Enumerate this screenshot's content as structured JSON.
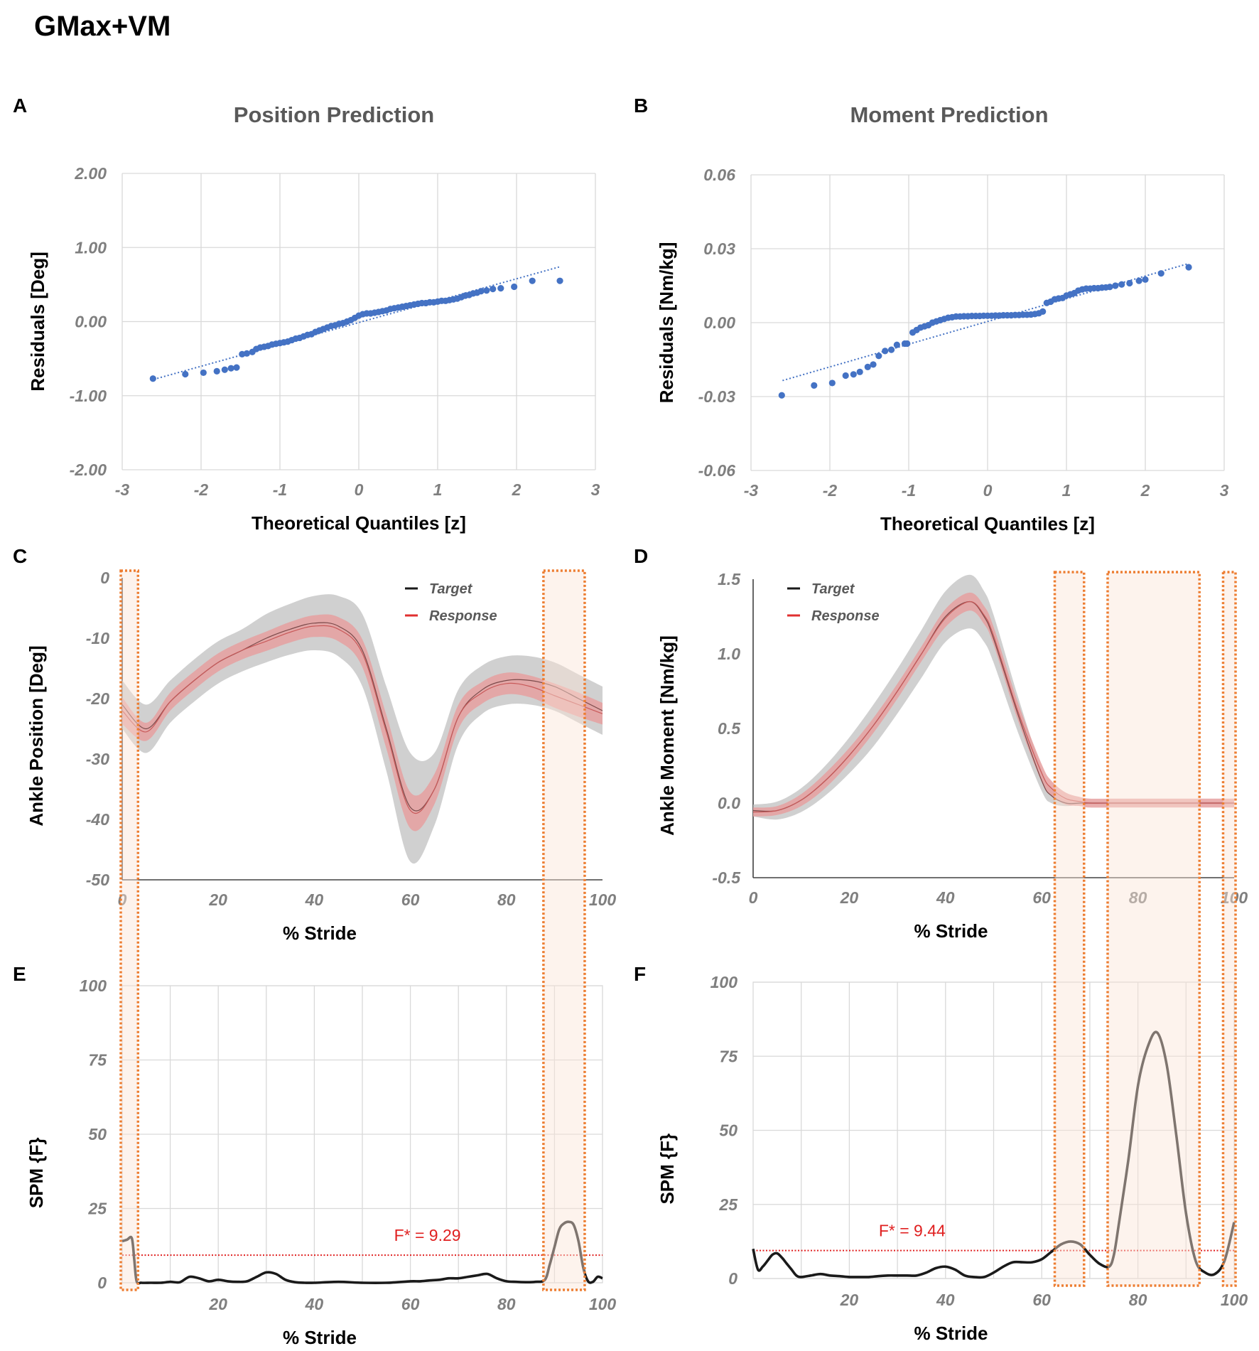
{
  "figure_title": "GMax+VM",
  "panels": {
    "A": "A",
    "B": "B",
    "C": "C",
    "D": "D",
    "E": "E",
    "F": "F"
  },
  "colors": {
    "qq_points": "#4472c4",
    "target": "#1a1a1a",
    "response": "#e03030",
    "target_band": "#c0c0c0",
    "response_band": "#e6a0a0",
    "highlight_border": "#ed7d31",
    "highlight_fill": "#fbe5d6",
    "threshold": "#e02020"
  },
  "chart_data": [
    {
      "id": "A",
      "type": "scatter",
      "title": "Position Prediction",
      "xlabel": "Theoretical Quantiles [z]",
      "ylabel": "Residuals [Deg]",
      "xlim": [
        -3,
        3
      ],
      "ylim": [
        -2,
        2
      ],
      "xticks": [
        "-3",
        "-2",
        "-1",
        "0",
        "1",
        "2",
        "3"
      ],
      "yticks": [
        "2.00",
        "1.00",
        "0.00",
        "-1.00",
        "-2.00"
      ],
      "ytick_values": [
        2,
        1,
        0,
        -1,
        -2
      ],
      "fit_line": [
        [
          -2.6,
          -0.78
        ],
        [
          2.55,
          0.74
        ]
      ],
      "points": [
        [
          -2.61,
          -0.77
        ],
        [
          -2.2,
          -0.71
        ],
        [
          -1.97,
          -0.69
        ],
        [
          -1.8,
          -0.67
        ],
        [
          -1.7,
          -0.65
        ],
        [
          -1.62,
          -0.63
        ],
        [
          -1.55,
          -0.62
        ],
        [
          -1.48,
          -0.44
        ],
        [
          -1.42,
          -0.43
        ],
        [
          -1.35,
          -0.41
        ],
        [
          -1.3,
          -0.37
        ],
        [
          -1.25,
          -0.35
        ],
        [
          -1.2,
          -0.34
        ],
        [
          -1.15,
          -0.33
        ],
        [
          -1.1,
          -0.31
        ],
        [
          -1.05,
          -0.3
        ],
        [
          -1.0,
          -0.29
        ],
        [
          -0.95,
          -0.28
        ],
        [
          -0.9,
          -0.27
        ],
        [
          -0.85,
          -0.25
        ],
        [
          -0.8,
          -0.23
        ],
        [
          -0.75,
          -0.22
        ],
        [
          -0.7,
          -0.2
        ],
        [
          -0.65,
          -0.18
        ],
        [
          -0.6,
          -0.17
        ],
        [
          -0.55,
          -0.14
        ],
        [
          -0.5,
          -0.12
        ],
        [
          -0.45,
          -0.1
        ],
        [
          -0.4,
          -0.08
        ],
        [
          -0.35,
          -0.06
        ],
        [
          -0.3,
          -0.05
        ],
        [
          -0.25,
          -0.03
        ],
        [
          -0.2,
          -0.02
        ],
        [
          -0.15,
          0.0
        ],
        [
          -0.1,
          0.02
        ],
        [
          -0.05,
          0.05
        ],
        [
          0.0,
          0.08
        ],
        [
          0.05,
          0.1
        ],
        [
          0.1,
          0.11
        ],
        [
          0.15,
          0.11
        ],
        [
          0.2,
          0.12
        ],
        [
          0.25,
          0.13
        ],
        [
          0.3,
          0.14
        ],
        [
          0.35,
          0.15
        ],
        [
          0.4,
          0.17
        ],
        [
          0.45,
          0.18
        ],
        [
          0.5,
          0.19
        ],
        [
          0.55,
          0.2
        ],
        [
          0.6,
          0.21
        ],
        [
          0.65,
          0.22
        ],
        [
          0.7,
          0.23
        ],
        [
          0.75,
          0.24
        ],
        [
          0.8,
          0.25
        ],
        [
          0.85,
          0.25
        ],
        [
          0.9,
          0.26
        ],
        [
          0.95,
          0.26
        ],
        [
          1.0,
          0.27
        ],
        [
          1.05,
          0.28
        ],
        [
          1.1,
          0.28
        ],
        [
          1.15,
          0.29
        ],
        [
          1.2,
          0.3
        ],
        [
          1.25,
          0.31
        ],
        [
          1.3,
          0.33
        ],
        [
          1.35,
          0.35
        ],
        [
          1.4,
          0.36
        ],
        [
          1.45,
          0.38
        ],
        [
          1.5,
          0.39
        ],
        [
          1.55,
          0.41
        ],
        [
          1.62,
          0.42
        ],
        [
          1.7,
          0.44
        ],
        [
          1.8,
          0.45
        ],
        [
          1.97,
          0.47
        ],
        [
          2.2,
          0.55
        ],
        [
          2.55,
          0.55
        ]
      ]
    },
    {
      "id": "B",
      "type": "scatter",
      "title": "Moment Prediction",
      "xlabel": "Theoretical Quantiles [z]",
      "ylabel": "Residuals [Nm/kg]",
      "xlim": [
        -3,
        3
      ],
      "ylim": [
        -0.06,
        0.06
      ],
      "xticks": [
        "-3",
        "-2",
        "-1",
        "0",
        "1",
        "2",
        "3"
      ],
      "yticks": [
        "0.06",
        "0.03",
        "0.00",
        "-0.03",
        "-0.06"
      ],
      "ytick_values": [
        0.06,
        0.03,
        0.0,
        -0.03,
        -0.06
      ],
      "fit_line": [
        [
          -2.6,
          -0.0235
        ],
        [
          2.55,
          0.024
        ]
      ],
      "points": [
        [
          -2.61,
          -0.0295
        ],
        [
          -2.2,
          -0.0255
        ],
        [
          -1.97,
          -0.0245
        ],
        [
          -1.8,
          -0.0215
        ],
        [
          -1.7,
          -0.021
        ],
        [
          -1.62,
          -0.02
        ],
        [
          -1.52,
          -0.018
        ],
        [
          -1.45,
          -0.017
        ],
        [
          -1.38,
          -0.0135
        ],
        [
          -1.3,
          -0.0115
        ],
        [
          -1.22,
          -0.011
        ],
        [
          -1.15,
          -0.009
        ],
        [
          -1.05,
          -0.0085
        ],
        [
          -1.02,
          -0.0085
        ],
        [
          -0.95,
          -0.004
        ],
        [
          -0.9,
          -0.003
        ],
        [
          -0.85,
          -0.002
        ],
        [
          -0.8,
          -0.0015
        ],
        [
          -0.75,
          -0.001
        ],
        [
          -0.7,
          0.0
        ],
        [
          -0.65,
          0.0005
        ],
        [
          -0.6,
          0.001
        ],
        [
          -0.55,
          0.0015
        ],
        [
          -0.5,
          0.002
        ],
        [
          -0.45,
          0.0022
        ],
        [
          -0.4,
          0.0025
        ],
        [
          -0.35,
          0.0025
        ],
        [
          -0.3,
          0.0026
        ],
        [
          -0.25,
          0.0026
        ],
        [
          -0.2,
          0.0027
        ],
        [
          -0.15,
          0.0027
        ],
        [
          -0.1,
          0.0027
        ],
        [
          -0.05,
          0.0028
        ],
        [
          0.0,
          0.0028
        ],
        [
          0.05,
          0.0028
        ],
        [
          0.1,
          0.0029
        ],
        [
          0.15,
          0.0029
        ],
        [
          0.2,
          0.003
        ],
        [
          0.25,
          0.003
        ],
        [
          0.3,
          0.003
        ],
        [
          0.35,
          0.0031
        ],
        [
          0.4,
          0.0031
        ],
        [
          0.45,
          0.0032
        ],
        [
          0.5,
          0.0032
        ],
        [
          0.55,
          0.0033
        ],
        [
          0.6,
          0.0035
        ],
        [
          0.65,
          0.0038
        ],
        [
          0.7,
          0.0045
        ],
        [
          0.75,
          0.008
        ],
        [
          0.8,
          0.0085
        ],
        [
          0.85,
          0.0095
        ],
        [
          0.9,
          0.0098
        ],
        [
          0.95,
          0.01
        ],
        [
          1.0,
          0.011
        ],
        [
          1.05,
          0.0115
        ],
        [
          1.1,
          0.012
        ],
        [
          1.15,
          0.013
        ],
        [
          1.2,
          0.0135
        ],
        [
          1.25,
          0.0138
        ],
        [
          1.3,
          0.0138
        ],
        [
          1.35,
          0.014
        ],
        [
          1.4,
          0.014
        ],
        [
          1.45,
          0.0142
        ],
        [
          1.5,
          0.0143
        ],
        [
          1.55,
          0.0145
        ],
        [
          1.62,
          0.015
        ],
        [
          1.7,
          0.0155
        ],
        [
          1.8,
          0.016
        ],
        [
          1.92,
          0.017
        ],
        [
          2.0,
          0.0175
        ],
        [
          2.2,
          0.02
        ],
        [
          2.55,
          0.0225
        ]
      ]
    },
    {
      "id": "C",
      "type": "line",
      "xlabel": "% Stride",
      "ylabel": "Ankle Position [Deg]",
      "xlim": [
        0,
        100
      ],
      "ylim": [
        -50,
        0
      ],
      "xticks": [
        "0",
        "20",
        "40",
        "60",
        "80",
        "100"
      ],
      "xtick_values": [
        0,
        20,
        40,
        60,
        80,
        100
      ],
      "yticks": [
        "0",
        "-10",
        "-20",
        "-30",
        "-40",
        "-50"
      ],
      "ytick_values": [
        0,
        -10,
        -20,
        -30,
        -40,
        -50
      ],
      "legend": {
        "target": "Target",
        "response": "Response"
      },
      "highlights": [
        [
          0,
          3
        ],
        [
          88,
          96
        ]
      ],
      "x": [
        0,
        5,
        10,
        15,
        20,
        25,
        30,
        35,
        40,
        45,
        50,
        55,
        60,
        65,
        70,
        75,
        80,
        85,
        90,
        95,
        100
      ],
      "target_mean": [
        -21,
        -25,
        -20.5,
        -17,
        -14,
        -12,
        -10,
        -8.5,
        -7.5,
        -8,
        -12,
        -25,
        -38,
        -35,
        -23,
        -18.5,
        -17,
        -17,
        -18,
        -20,
        -22
      ],
      "target_sd": [
        4,
        4,
        3.5,
        3.5,
        3.5,
        3.5,
        4,
        4.2,
        4.5,
        5,
        6,
        7,
        9,
        6,
        4.5,
        4,
        4,
        4,
        4,
        4,
        4
      ],
      "response_mean": [
        -22,
        -25.5,
        -20.5,
        -17,
        -14,
        -12,
        -10.5,
        -9,
        -8,
        -8.5,
        -12.5,
        -25.5,
        -38.5,
        -35,
        -23,
        -19,
        -17.5,
        -18,
        -19.5,
        -21,
        -22.5
      ],
      "response_sd": [
        2.2,
        1.5,
        1.5,
        1.5,
        1.5,
        1.5,
        1.6,
        1.7,
        1.8,
        2,
        2.3,
        2.8,
        3,
        2.5,
        2,
        1.8,
        1.8,
        1.8,
        2,
        2,
        1.8
      ]
    },
    {
      "id": "D",
      "type": "line",
      "xlabel": "% Stride",
      "ylabel": "Ankle Moment [Nm/kg]",
      "xlim": [
        0,
        100
      ],
      "ylim": [
        -0.5,
        1.5
      ],
      "xticks": [
        "0",
        "20",
        "40",
        "60",
        "80",
        "100"
      ],
      "xtick_values": [
        0,
        20,
        40,
        60,
        80,
        100
      ],
      "yticks": [
        "1.5",
        "1.0",
        "0.5",
        "0.0",
        "-0.5"
      ],
      "ytick_values": [
        1.5,
        1.0,
        0.5,
        0.0,
        -0.5
      ],
      "legend": {
        "target": "Target",
        "response": "Response"
      },
      "highlights": [
        [
          63,
          68.5
        ],
        [
          74,
          92.5
        ],
        [
          98,
          100
        ]
      ],
      "x": [
        0,
        5,
        10,
        15,
        20,
        25,
        30,
        35,
        40,
        45,
        48,
        50,
        55,
        60,
        62,
        65,
        68,
        70,
        75,
        80,
        85,
        90,
        95,
        100
      ],
      "target_mean": [
        -0.05,
        -0.05,
        0.02,
        0.15,
        0.32,
        0.52,
        0.75,
        1.0,
        1.25,
        1.35,
        1.25,
        1.1,
        0.6,
        0.15,
        0.05,
        0.0,
        0.0,
        0.0,
        0.0,
        0.0,
        0.0,
        0.0,
        0.0,
        0.0
      ],
      "target_sd": [
        0.04,
        0.06,
        0.08,
        0.1,
        0.12,
        0.14,
        0.15,
        0.16,
        0.17,
        0.18,
        0.17,
        0.16,
        0.12,
        0.07,
        0.05,
        0.02,
        0.01,
        0.01,
        0.01,
        0.01,
        0.01,
        0.01,
        0.01,
        0.01
      ],
      "response_mean": [
        -0.06,
        -0.05,
        0.02,
        0.15,
        0.32,
        0.52,
        0.75,
        1.0,
        1.24,
        1.35,
        1.26,
        1.12,
        0.62,
        0.2,
        0.1,
        0.03,
        0.01,
        0.0,
        0.0,
        0.0,
        0.0,
        0.0,
        0.0,
        0.0
      ],
      "response_sd": [
        0.03,
        0.03,
        0.04,
        0.05,
        0.05,
        0.05,
        0.05,
        0.05,
        0.06,
        0.06,
        0.06,
        0.06,
        0.06,
        0.06,
        0.05,
        0.04,
        0.03,
        0.03,
        0.03,
        0.03,
        0.03,
        0.03,
        0.03,
        0.03
      ]
    },
    {
      "id": "E",
      "type": "line",
      "xlabel": "% Stride",
      "ylabel": "SPM {F}",
      "xlim": [
        0,
        100
      ],
      "ylim": [
        0,
        100
      ],
      "xticks": [
        "20",
        "40",
        "60",
        "80",
        "100"
      ],
      "xtick_values": [
        20,
        40,
        60,
        80,
        100
      ],
      "yticks": [
        "100",
        "75",
        "50",
        "25",
        "0"
      ],
      "ytick_values": [
        100,
        75,
        50,
        25,
        0
      ],
      "threshold": 9.29,
      "threshold_label": "F* = 9.29",
      "highlights": [
        [
          0,
          3
        ],
        [
          88,
          96
        ]
      ],
      "x": [
        0,
        1,
        2,
        2.5,
        3,
        4,
        6,
        8,
        10,
        12,
        14,
        16,
        18,
        20,
        22,
        24,
        26,
        28,
        30,
        32,
        34,
        36,
        38,
        40,
        45,
        50,
        55,
        60,
        62,
        64,
        66,
        68,
        70,
        72,
        74,
        76,
        78,
        80,
        82,
        84,
        86,
        88,
        89,
        90,
        91,
        92,
        93,
        94,
        95,
        96,
        97,
        98,
        99,
        100
      ],
      "values": [
        14,
        14.5,
        15,
        8,
        0.5,
        0,
        0,
        0,
        0.3,
        0.2,
        2,
        1.5,
        0.5,
        1,
        0.5,
        0.3,
        0.5,
        2,
        3.5,
        3,
        1,
        0.2,
        0,
        0,
        0.3,
        0,
        0,
        0.5,
        0.5,
        0.8,
        1,
        1.5,
        1.5,
        2,
        2.5,
        3,
        1.5,
        0.5,
        0.3,
        0.2,
        0.3,
        1,
        6,
        12,
        18,
        20,
        20.5,
        19.5,
        14,
        5,
        0.5,
        0.3,
        2,
        1.5
      ]
    },
    {
      "id": "F",
      "type": "line",
      "xlabel": "% Stride",
      "ylabel": "SPM {F}",
      "xlim": [
        0,
        100
      ],
      "ylim": [
        0,
        100
      ],
      "xticks": [
        "20",
        "40",
        "60",
        "80",
        "100"
      ],
      "xtick_values": [
        20,
        40,
        60,
        80,
        100
      ],
      "yticks": [
        "100",
        "75",
        "50",
        "25",
        "0"
      ],
      "ytick_values": [
        100,
        75,
        50,
        25,
        0
      ],
      "threshold": 9.44,
      "threshold_label": "F* = 9.44",
      "highlights": [
        [
          63,
          68.5
        ],
        [
          74,
          92.5
        ],
        [
          98,
          100
        ]
      ],
      "x": [
        0,
        1,
        2,
        3,
        4,
        5,
        6,
        7,
        8,
        9,
        10,
        12,
        14,
        16,
        18,
        20,
        22,
        24,
        26,
        28,
        30,
        32,
        34,
        36,
        38,
        40,
        42,
        44,
        46,
        48,
        50,
        52,
        54,
        56,
        58,
        60,
        62,
        64,
        66,
        68,
        70,
        72,
        74,
        75,
        76,
        78,
        80,
        82,
        84,
        86,
        88,
        90,
        92,
        94,
        96,
        98,
        100
      ],
      "values": [
        10,
        3,
        4,
        6,
        8,
        8.5,
        7,
        5,
        3,
        1,
        0.5,
        1,
        1.5,
        1,
        0.8,
        0.5,
        0.5,
        0.5,
        0.8,
        1,
        1,
        1,
        1,
        2,
        3.5,
        4,
        3,
        1,
        0.5,
        0.5,
        2,
        4,
        5.5,
        5.5,
        5.5,
        6.5,
        9,
        11.5,
        12.5,
        11.5,
        8,
        5,
        4,
        8,
        18,
        40,
        65,
        78,
        83,
        72,
        48,
        22,
        6,
        2,
        1.5,
        6,
        19
      ]
    }
  ]
}
